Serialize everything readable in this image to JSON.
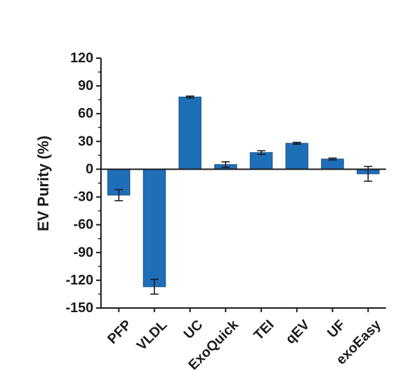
{
  "chart_data": {
    "type": "bar",
    "title": "",
    "xlabel": "",
    "ylabel": "EV Purity (%)",
    "ylim": [
      -150,
      120
    ],
    "yticks": [
      120,
      90,
      60,
      30,
      0,
      -30,
      -60,
      -90,
      -120,
      -150
    ],
    "categories": [
      "PFP",
      "VLDL",
      "UC",
      "ExoQuick",
      "TEI",
      "qEV",
      "UF",
      "exoEasy"
    ],
    "values": [
      -28,
      -127,
      78,
      5,
      18,
      28,
      11,
      -5
    ],
    "errors": [
      6,
      8,
      1,
      3,
      2,
      1,
      1,
      8
    ],
    "bar_color": "#1f6fb8",
    "error_color": "#1a1a1a",
    "axis_color": "#1a1a1a",
    "grid": false
  }
}
